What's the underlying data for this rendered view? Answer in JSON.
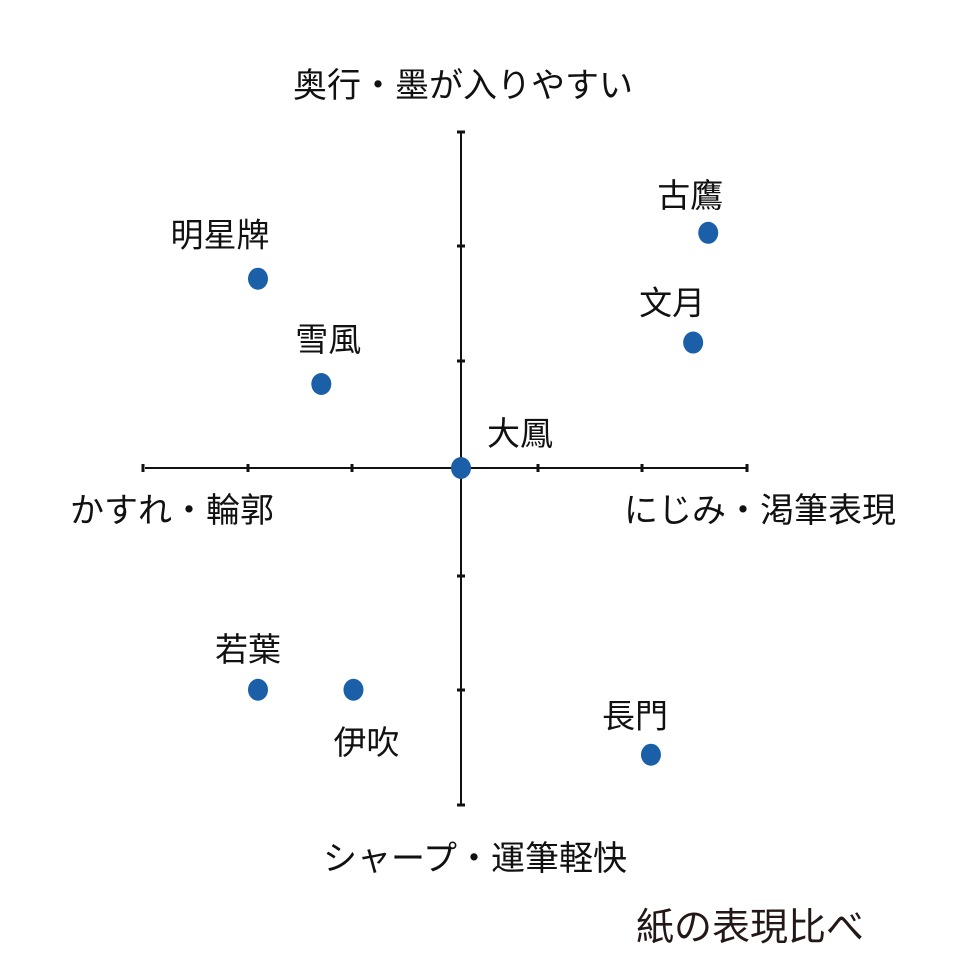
{
  "chart_data": {
    "type": "scatter",
    "title": "紙の表現比べ",
    "axis_labels": {
      "top": "奥行・墨が入りやすい",
      "bottom": "シャープ・運筆軽快",
      "left": "かすれ・輪郭",
      "right": "にじみ・渇筆表現"
    },
    "xlim": [
      -3.1,
      2.9
    ],
    "ylim": [
      -3,
      3
    ],
    "grid": false,
    "point_color": "#1a5fa8",
    "points": [
      {
        "label": "明星牌",
        "x": -2.02,
        "y": 1.69
      },
      {
        "label": "雪風",
        "x": -1.39,
        "y": 0.75
      },
      {
        "label": "古鷹",
        "x": 2.46,
        "y": 2.1
      },
      {
        "label": "文月",
        "x": 2.31,
        "y": 1.12
      },
      {
        "label": "大鳳",
        "x": 0,
        "y": 0
      },
      {
        "label": "若葉",
        "x": -2.02,
        "y": -1.98
      },
      {
        "label": "伊吹",
        "x": -1.07,
        "y": -1.98
      },
      {
        "label": "長門",
        "x": 1.89,
        "y": -2.56
      }
    ]
  }
}
